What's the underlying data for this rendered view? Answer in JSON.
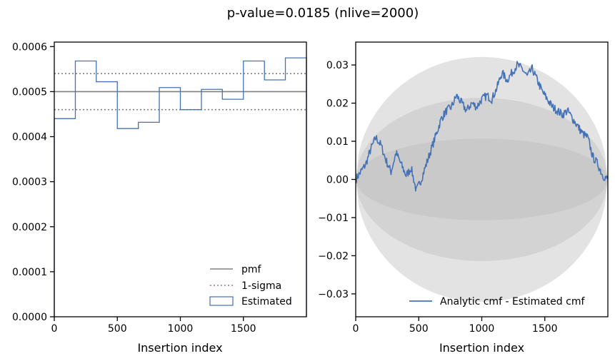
{
  "title": "p-value=0.0185 (nlive=2000)",
  "colors": {
    "estimated": "#4472b8",
    "pmf": "#808080",
    "sigma": "#808080",
    "band": "#bdbdbd",
    "axis": "#000000"
  },
  "chart_data": [
    {
      "type": "line",
      "panel": "left",
      "xlabel": "Insertion index",
      "ylabel": "",
      "xlim": [
        0,
        2000
      ],
      "ylim": [
        0,
        0.00061
      ],
      "xticks": [
        0,
        500,
        1000,
        1500
      ],
      "xtick_labels": [
        "0",
        "500",
        "1000",
        "1500"
      ],
      "yticks": [
        0,
        0.0001,
        0.0002,
        0.0003,
        0.0004,
        0.0005,
        0.0006
      ],
      "ytick_labels": [
        "0.0000",
        "0.0001",
        "0.0002",
        "0.0003",
        "0.0004",
        "0.0005",
        "0.0006"
      ],
      "pmf": 0.0005,
      "sigma_upper": 0.00054,
      "sigma_lower": 0.00046,
      "bin_edges": [
        0,
        167,
        333,
        500,
        667,
        833,
        1000,
        1167,
        1333,
        1500,
        1667,
        1833,
        2000
      ],
      "bin_values": [
        0.00044,
        0.000568,
        0.000522,
        0.000418,
        0.000432,
        0.000509,
        0.00046,
        0.000505,
        0.000483,
        0.000568,
        0.000526,
        0.000575
      ],
      "legend": [
        "pmf",
        "1-sigma",
        "Estimated"
      ],
      "legend_position": "lower-right"
    },
    {
      "type": "line",
      "panel": "right",
      "xlabel": "Insertion index",
      "ylabel": "",
      "xlim": [
        0,
        2000
      ],
      "ylim": [
        -0.036,
        0.036
      ],
      "xticks": [
        0,
        500,
        1000,
        1500
      ],
      "xtick_labels": [
        "0",
        "500",
        "1000",
        "1500"
      ],
      "yticks": [
        -0.03,
        -0.02,
        -0.01,
        0.0,
        0.01,
        0.02,
        0.03
      ],
      "ytick_labels": [
        "−0.03",
        "−0.02",
        "−0.01",
        "0.00",
        "0.01",
        "0.02",
        "0.03"
      ],
      "band_sigmas": [
        1,
        2,
        3
      ],
      "band_1sigma_peak": 0.0107,
      "series": [
        {
          "name": "Analytic cmf - Estimated cmf",
          "x": [
            0,
            40,
            80,
            120,
            160,
            200,
            240,
            280,
            320,
            360,
            400,
            440,
            480,
            520,
            560,
            600,
            640,
            680,
            720,
            760,
            800,
            840,
            880,
            920,
            960,
            1000,
            1040,
            1080,
            1120,
            1160,
            1200,
            1240,
            1280,
            1320,
            1360,
            1400,
            1440,
            1480,
            1520,
            1560,
            1600,
            1640,
            1680,
            1720,
            1760,
            1800,
            1840,
            1880,
            1920,
            1960,
            2000
          ],
          "values": [
            0.0,
            0.002,
            0.004,
            0.008,
            0.011,
            0.009,
            0.005,
            0.002,
            0.007,
            0.004,
            0.001,
            0.003,
            -0.003,
            0.0,
            0.004,
            0.008,
            0.012,
            0.016,
            0.018,
            0.019,
            0.022,
            0.02,
            0.018,
            0.02,
            0.019,
            0.021,
            0.022,
            0.021,
            0.024,
            0.028,
            0.026,
            0.028,
            0.03,
            0.029,
            0.027,
            0.029,
            0.026,
            0.023,
            0.021,
            0.019,
            0.018,
            0.017,
            0.018,
            0.016,
            0.014,
            0.012,
            0.011,
            0.006,
            0.004,
            0.001,
            0.0
          ]
        }
      ],
      "legend": [
        "Analytic cmf - Estimated cmf"
      ],
      "legend_position": "lower-right"
    }
  ]
}
